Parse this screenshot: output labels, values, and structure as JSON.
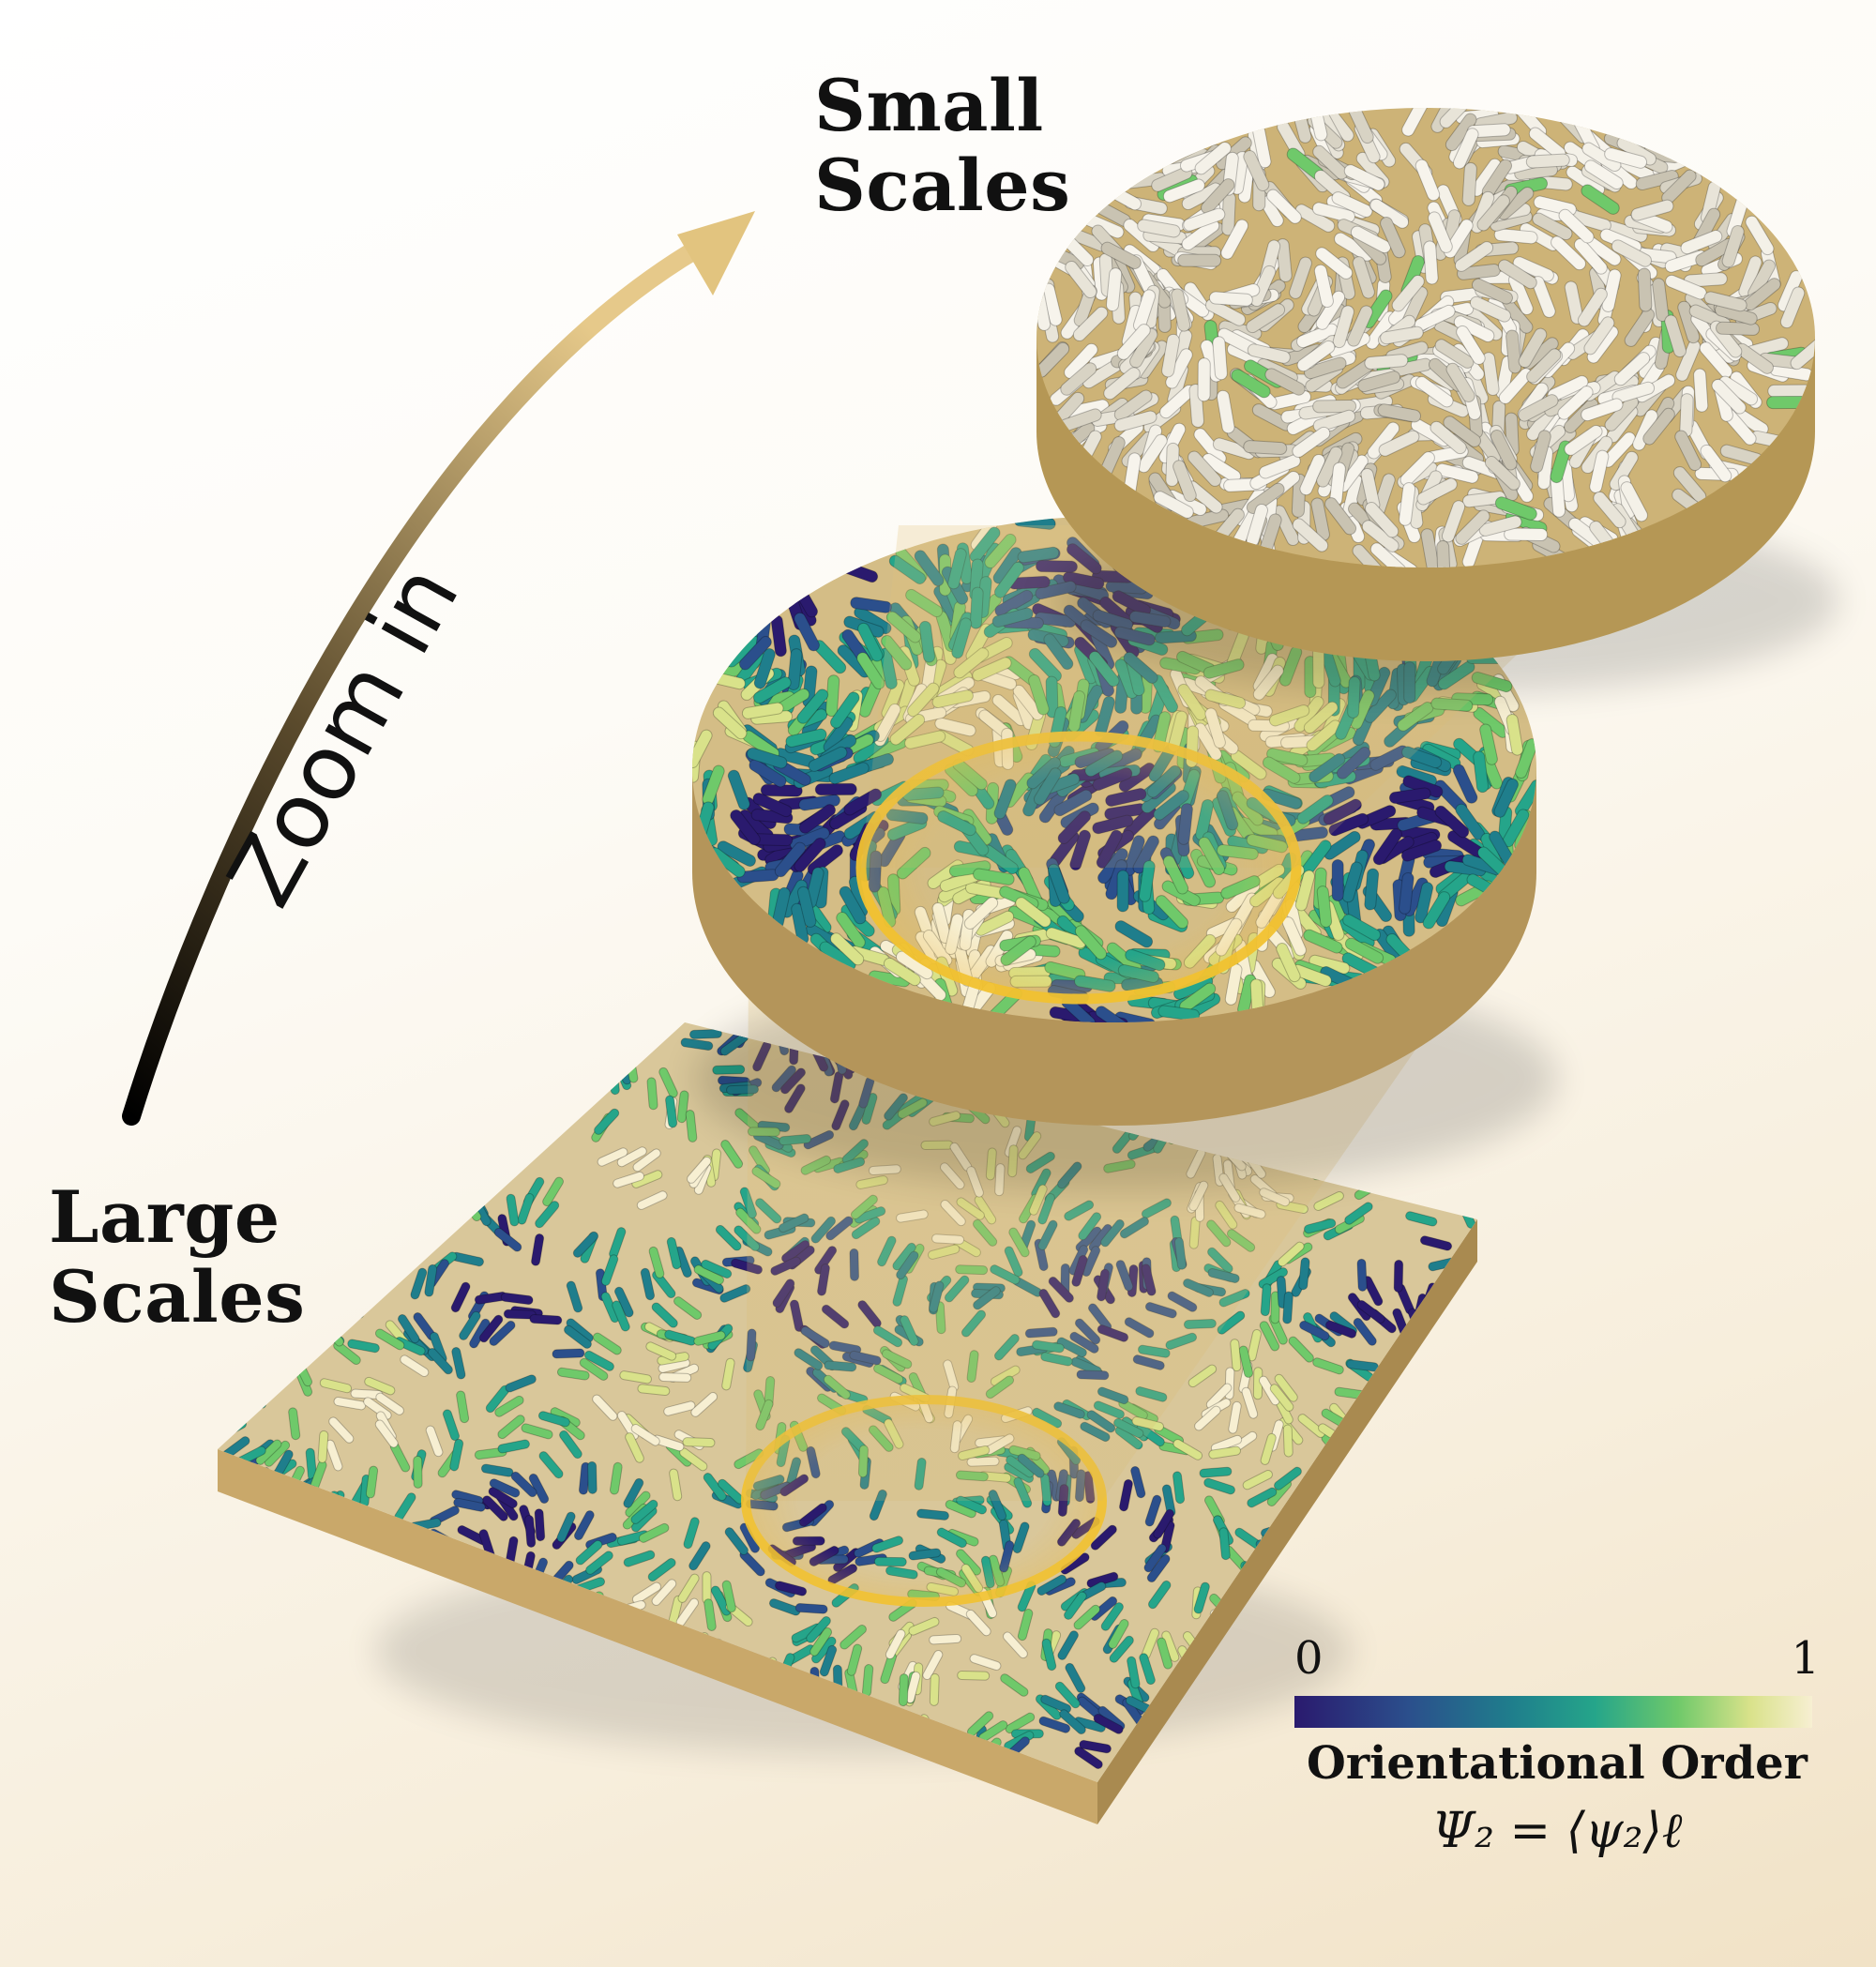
{
  "zoom_arrow": {
    "label": "Zoom in"
  },
  "large_scales": {
    "line1": "Large",
    "line2": "Scales"
  },
  "small_scales": {
    "line1": "Small",
    "line2": "Scales"
  },
  "legend": {
    "min": "0",
    "max": "1",
    "title": "Orientational Order",
    "formula": "Ψ₂ = ⟨ψ₂⟩ℓ"
  },
  "colors": {
    "base": "#d2b67b",
    "base_side": "#b89a5c",
    "arrow_gold": "#e2c47f",
    "highlight_ring": "#f2c230",
    "colormap": [
      "#2a1a6e",
      "#2b4f8c",
      "#1f7e8c",
      "#25a58a",
      "#6fc96a",
      "#d9e28a",
      "#f7efd2"
    ]
  }
}
